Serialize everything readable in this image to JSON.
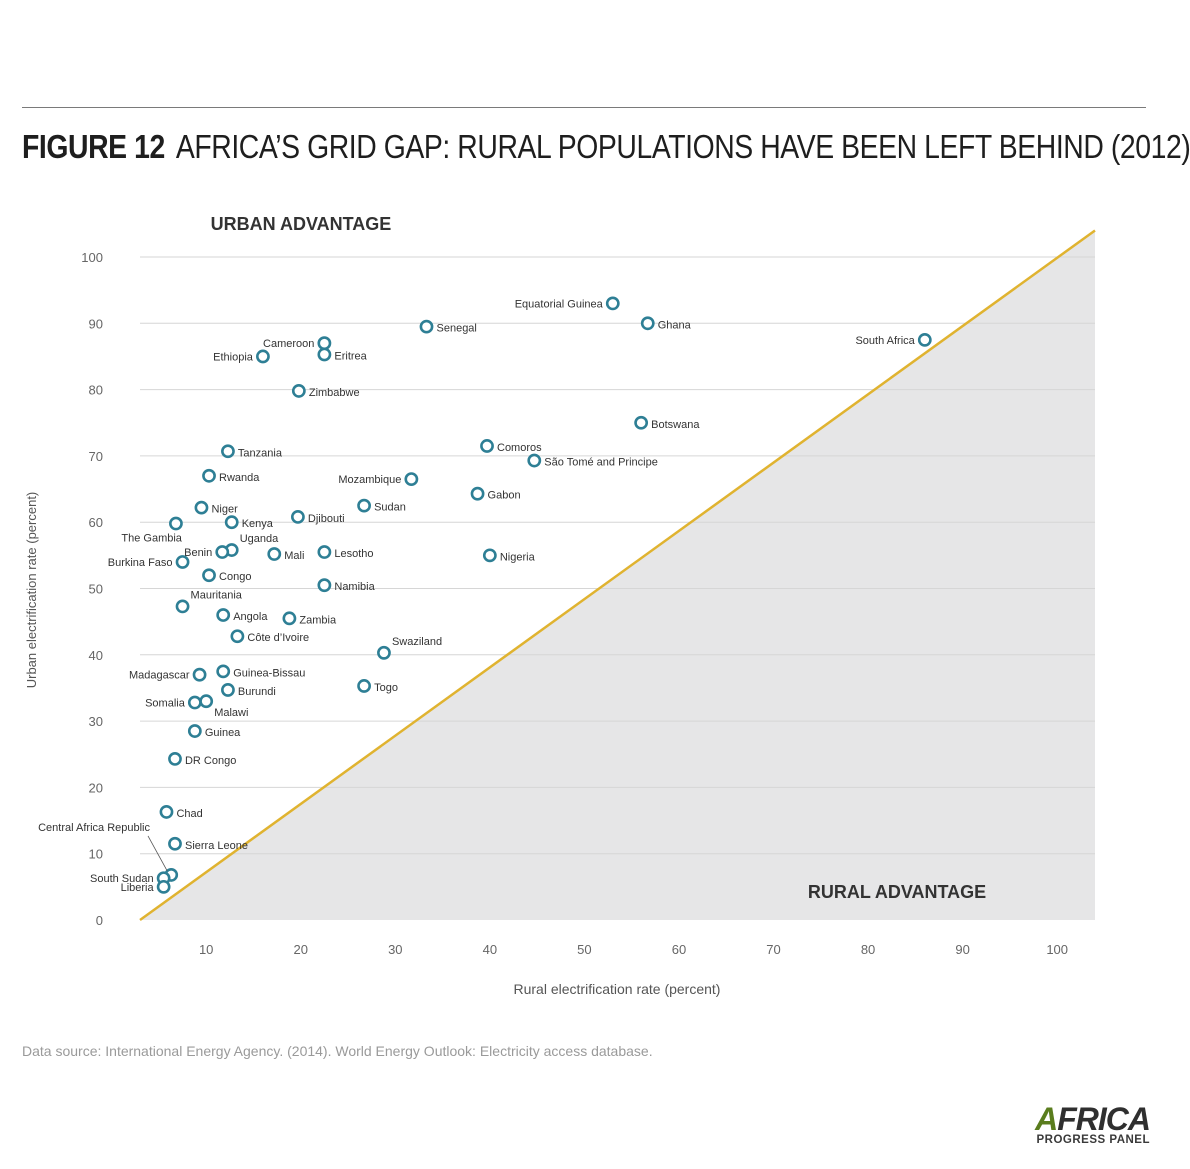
{
  "header": {
    "figure_label": "FIGURE 12",
    "title": "AFRICA’S GRID GAP: RURAL POPULATIONS HAVE BEEN LEFT BEHIND (2012)"
  },
  "chart_data": {
    "type": "scatter",
    "xlabel": "Rural electrification rate (percent)",
    "ylabel": "Urban electrification rate (percent)",
    "xlim": [
      3,
      104
    ],
    "ylim": [
      0,
      100
    ],
    "x_ticks": [
      "10",
      "20",
      "30",
      "40",
      "50",
      "60",
      "70",
      "80",
      "90",
      "100"
    ],
    "y_ticks": [
      "0",
      "10",
      "20",
      "30",
      "40",
      "50",
      "60",
      "70",
      "80",
      "90",
      "100"
    ],
    "grid": true,
    "diagonal": "y = x",
    "region_labels": {
      "upper": "URBAN ADVANTAGE",
      "lower": "RURAL ADVANTAGE"
    },
    "colors": {
      "marker": "#2e7f95",
      "diagonal": "#e0b330",
      "shade": "#e6e6e7",
      "grid": "#d6d6d6"
    },
    "points": [
      {
        "label": "Equatorial Guinea",
        "x": 53,
        "y": 93,
        "pos": "left"
      },
      {
        "label": "Ghana",
        "x": 56.7,
        "y": 90,
        "pos": "right"
      },
      {
        "label": "South Africa",
        "x": 86,
        "y": 87.5,
        "pos": "left"
      },
      {
        "label": "Senegal",
        "x": 33.3,
        "y": 89.5,
        "pos": "right"
      },
      {
        "label": "Cameroon",
        "x": 22.5,
        "y": 87,
        "pos": "left"
      },
      {
        "label": "Eritrea",
        "x": 22.5,
        "y": 85.3,
        "pos": "right"
      },
      {
        "label": "Ethiopia",
        "x": 16,
        "y": 85,
        "pos": "left"
      },
      {
        "label": "Zimbabwe",
        "x": 19.8,
        "y": 79.8,
        "pos": "right"
      },
      {
        "label": "Botswana",
        "x": 56,
        "y": 75,
        "pos": "right"
      },
      {
        "label": "Comoros",
        "x": 39.7,
        "y": 71.5,
        "pos": "right"
      },
      {
        "label": "São Tomé and Principe",
        "x": 44.7,
        "y": 69.3,
        "pos": "right"
      },
      {
        "label": "Tanzania",
        "x": 12.3,
        "y": 70.7,
        "pos": "right"
      },
      {
        "label": "Rwanda",
        "x": 10.3,
        "y": 67,
        "pos": "right"
      },
      {
        "label": "Mozambique",
        "x": 31.7,
        "y": 66.5,
        "pos": "left"
      },
      {
        "label": "Gabon",
        "x": 38.7,
        "y": 64.3,
        "pos": "right"
      },
      {
        "label": "Sudan",
        "x": 26.7,
        "y": 62.5,
        "pos": "right"
      },
      {
        "label": "Niger",
        "x": 9.5,
        "y": 62.2,
        "pos": "right"
      },
      {
        "label": "Djibouti",
        "x": 19.7,
        "y": 60.8,
        "pos": "right"
      },
      {
        "label": "Kenya",
        "x": 12.7,
        "y": 60,
        "pos": "right"
      },
      {
        "label": "The Gambia",
        "x": 6.8,
        "y": 59.8,
        "pos": "below-left"
      },
      {
        "label": "Uganda",
        "x": 12.7,
        "y": 55.8,
        "pos": "above-right"
      },
      {
        "label": "Benin",
        "x": 11.7,
        "y": 55.5,
        "pos": "left"
      },
      {
        "label": "Mali",
        "x": 17.2,
        "y": 55.2,
        "pos": "right"
      },
      {
        "label": "Lesotho",
        "x": 22.5,
        "y": 55.5,
        "pos": "right"
      },
      {
        "label": "Nigeria",
        "x": 40,
        "y": 55,
        "pos": "right"
      },
      {
        "label": "Burkina Faso",
        "x": 7.5,
        "y": 54,
        "pos": "left"
      },
      {
        "label": "Congo",
        "x": 10.3,
        "y": 52,
        "pos": "right"
      },
      {
        "label": "Namibia",
        "x": 22.5,
        "y": 50.5,
        "pos": "right"
      },
      {
        "label": "Mauritania",
        "x": 7.5,
        "y": 47.3,
        "pos": "above-right"
      },
      {
        "label": "Angola",
        "x": 11.8,
        "y": 46,
        "pos": "right"
      },
      {
        "label": "Zambia",
        "x": 18.8,
        "y": 45.5,
        "pos": "right"
      },
      {
        "label": "Côte d’Ivoire",
        "x": 13.3,
        "y": 42.8,
        "pos": "right"
      },
      {
        "label": "Swaziland",
        "x": 28.8,
        "y": 40.3,
        "pos": "above-right"
      },
      {
        "label": "Guinea-Bissau",
        "x": 11.8,
        "y": 37.5,
        "pos": "right"
      },
      {
        "label": "Madagascar",
        "x": 9.3,
        "y": 37,
        "pos": "left"
      },
      {
        "label": "Togo",
        "x": 26.7,
        "y": 35.3,
        "pos": "right"
      },
      {
        "label": "Burundi",
        "x": 12.3,
        "y": 34.7,
        "pos": "right"
      },
      {
        "label": "Somalia",
        "x": 8.8,
        "y": 32.8,
        "pos": "left"
      },
      {
        "label": "Malawi",
        "x": 10,
        "y": 33,
        "pos": "below-right"
      },
      {
        "label": "Guinea",
        "x": 8.8,
        "y": 28.5,
        "pos": "right"
      },
      {
        "label": "DR Congo",
        "x": 6.7,
        "y": 24.3,
        "pos": "right"
      },
      {
        "label": "Chad",
        "x": 5.8,
        "y": 16.3,
        "pos": "right"
      },
      {
        "label": "Sierra Leone",
        "x": 6.7,
        "y": 11.5,
        "pos": "right"
      },
      {
        "label": "Central Africa Republic",
        "x": 6.3,
        "y": 6.8,
        "pos": "leader"
      },
      {
        "label": "South Sudan",
        "x": 5.5,
        "y": 6.3,
        "pos": "left"
      },
      {
        "label": "Liberia",
        "x": 5.5,
        "y": 5,
        "pos": "left"
      }
    ]
  },
  "footer": {
    "source": "Data source: International Energy Agency. (2014). World Energy Outlook: Electricity access database.",
    "logo_line1_a": "A",
    "logo_line1_rest": "FRICA",
    "logo_line2": "PROGRESS PANEL"
  }
}
